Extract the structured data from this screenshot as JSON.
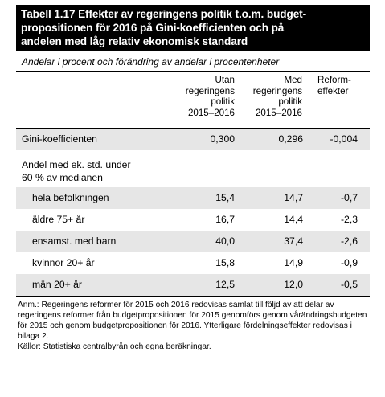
{
  "title": "Tabell 1.17 Effekter av regeringens politik t.o.m. budgetpropositionen för 2016 på Gini-koefficienten och på andelen med låg relativ ekonomisk standard",
  "title_lines": [
    "Tabell 1.17 Effekter av regeringens politik t.o.m. budget-",
    "propositionen för 2016 på Gini-koefficienten och på",
    "andelen med låg relativ ekonomisk standard"
  ],
  "subtitle": "Andelar i procent och förändring av andelar i procentenheter",
  "columns": [
    {
      "lines": [
        "Utan",
        "regeringens",
        "politik",
        "2015–2016"
      ]
    },
    {
      "lines": [
        "Med",
        "regeringens",
        "politik",
        "2015–2016"
      ]
    },
    {
      "lines": [
        "Reform-",
        "effekter"
      ]
    }
  ],
  "gini": {
    "label": "Gini-koefficienten",
    "values": [
      "0,300",
      "0,296",
      "-0,004"
    ]
  },
  "group_label_lines": [
    "Andel med ek. std. under",
    "60 % av medianen"
  ],
  "rows": [
    {
      "label": "hela befolkningen",
      "values": [
        "15,4",
        "14,7",
        "-0,7"
      ]
    },
    {
      "label": "äldre 75+ år",
      "values": [
        "16,7",
        "14,4",
        "-2,3"
      ]
    },
    {
      "label": "ensamst. med barn",
      "values": [
        "40,0",
        "37,4",
        "-2,6"
      ]
    },
    {
      "label": "kvinnor 20+ år",
      "values": [
        "15,8",
        "14,9",
        "-0,9"
      ]
    },
    {
      "label": "män 20+ år",
      "values": [
        "12,5",
        "12,0",
        "-0,5"
      ]
    }
  ],
  "note": "Anm.: Regeringens reformer för 2015 och 2016 redovisas samlat till följd av att delar av regeringens reformer från budgetpropositionen för 2015 genomförs genom vårändringsbudgeten för 2015 och genom budgetpropositionen för 2016. Ytterligare fördelningseffekter redovisas i bilaga 2.",
  "source": "Källor: Statistiska centralbyrån och egna beräkningar."
}
